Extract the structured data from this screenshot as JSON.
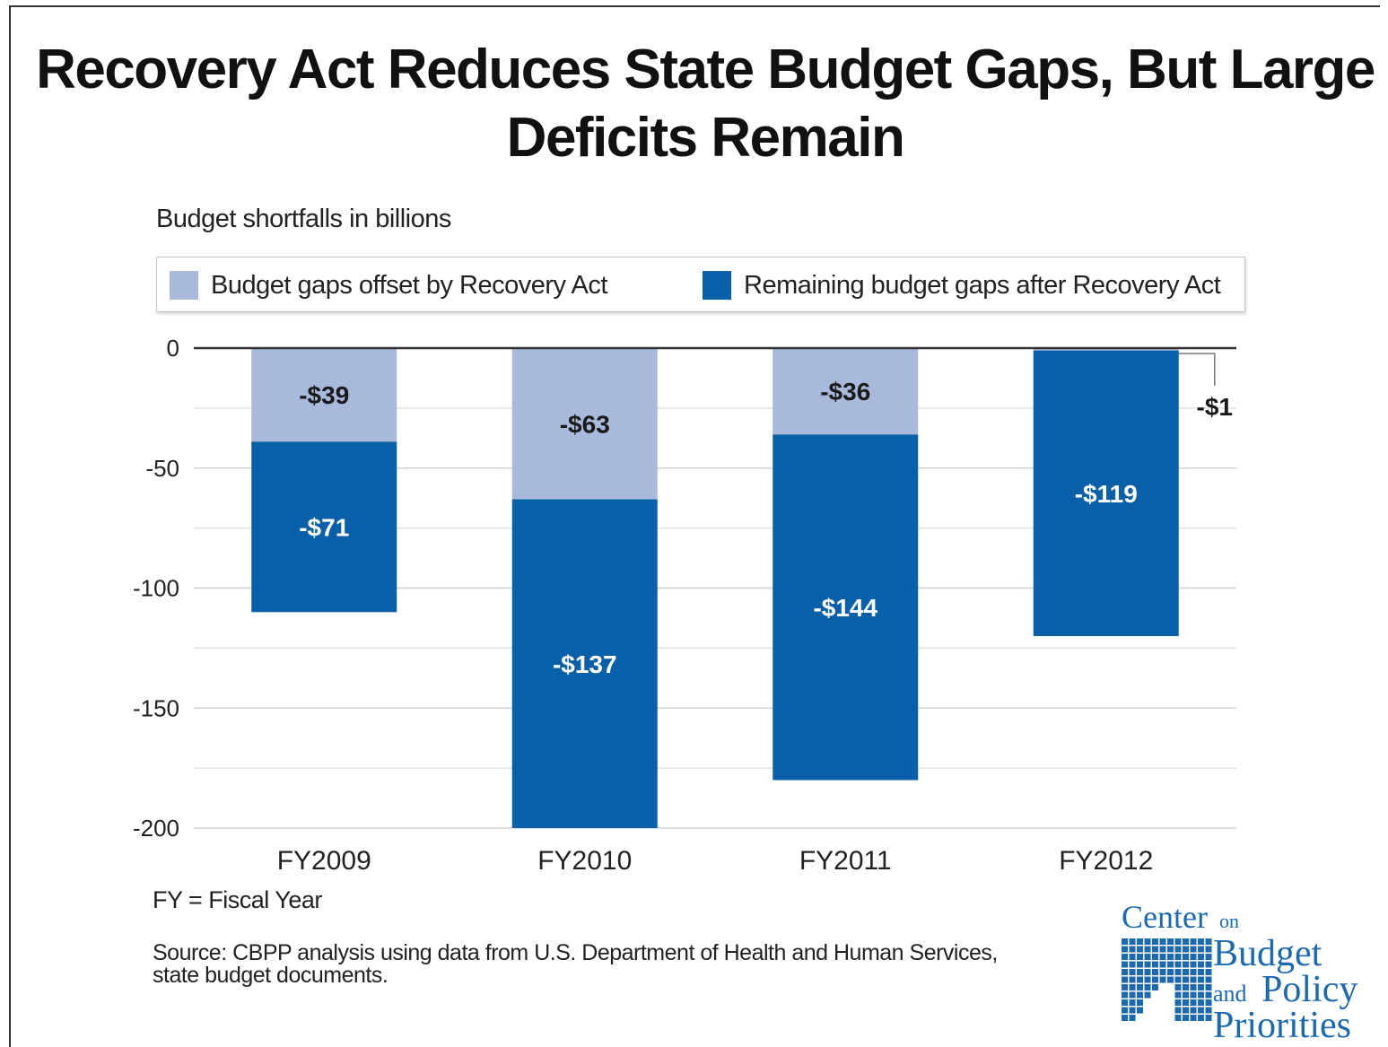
{
  "chart_data": {
    "type": "bar",
    "stacked": true,
    "title": "Recovery Act Reduces State Budget Gaps, But Large Deficits Remain",
    "subtitle": "Budget shortfalls in billions",
    "categories": [
      "FY2009",
      "FY2010",
      "FY2011",
      "FY2012"
    ],
    "series": [
      {
        "name": "Budget gaps offset by Recovery Act",
        "color": "#a9b9dc",
        "values": [
          -39,
          -63,
          -36,
          -1
        ],
        "labels": [
          "-$39",
          "-$63",
          "-$36",
          "-$1"
        ]
      },
      {
        "name": "Remaining budget gaps after Recovery Act",
        "color": "#0a5fa9",
        "values": [
          -71,
          -137,
          -144,
          -119
        ],
        "labels": [
          "-$71",
          "-$137",
          "-$144",
          "-$119"
        ]
      }
    ],
    "yticks": [
      0,
      -50,
      -100,
      -150,
      -200
    ],
    "ytick_labels": [
      "0",
      "-50",
      "-100",
      "-150",
      "-200"
    ],
    "ylim": [
      -200,
      0
    ],
    "grid": true,
    "legend_position": "top"
  },
  "footnote": "FY = Fiscal Year",
  "source": "Source: CBPP analysis using data from U.S. Department of Health and Human Services, state budget documents.",
  "logo": {
    "line1": "Center",
    "line1_small": "on",
    "line2": "Budget",
    "line3_small": "and",
    "line3": "Policy",
    "line4": "Priorities",
    "color": "#1b69b0"
  }
}
